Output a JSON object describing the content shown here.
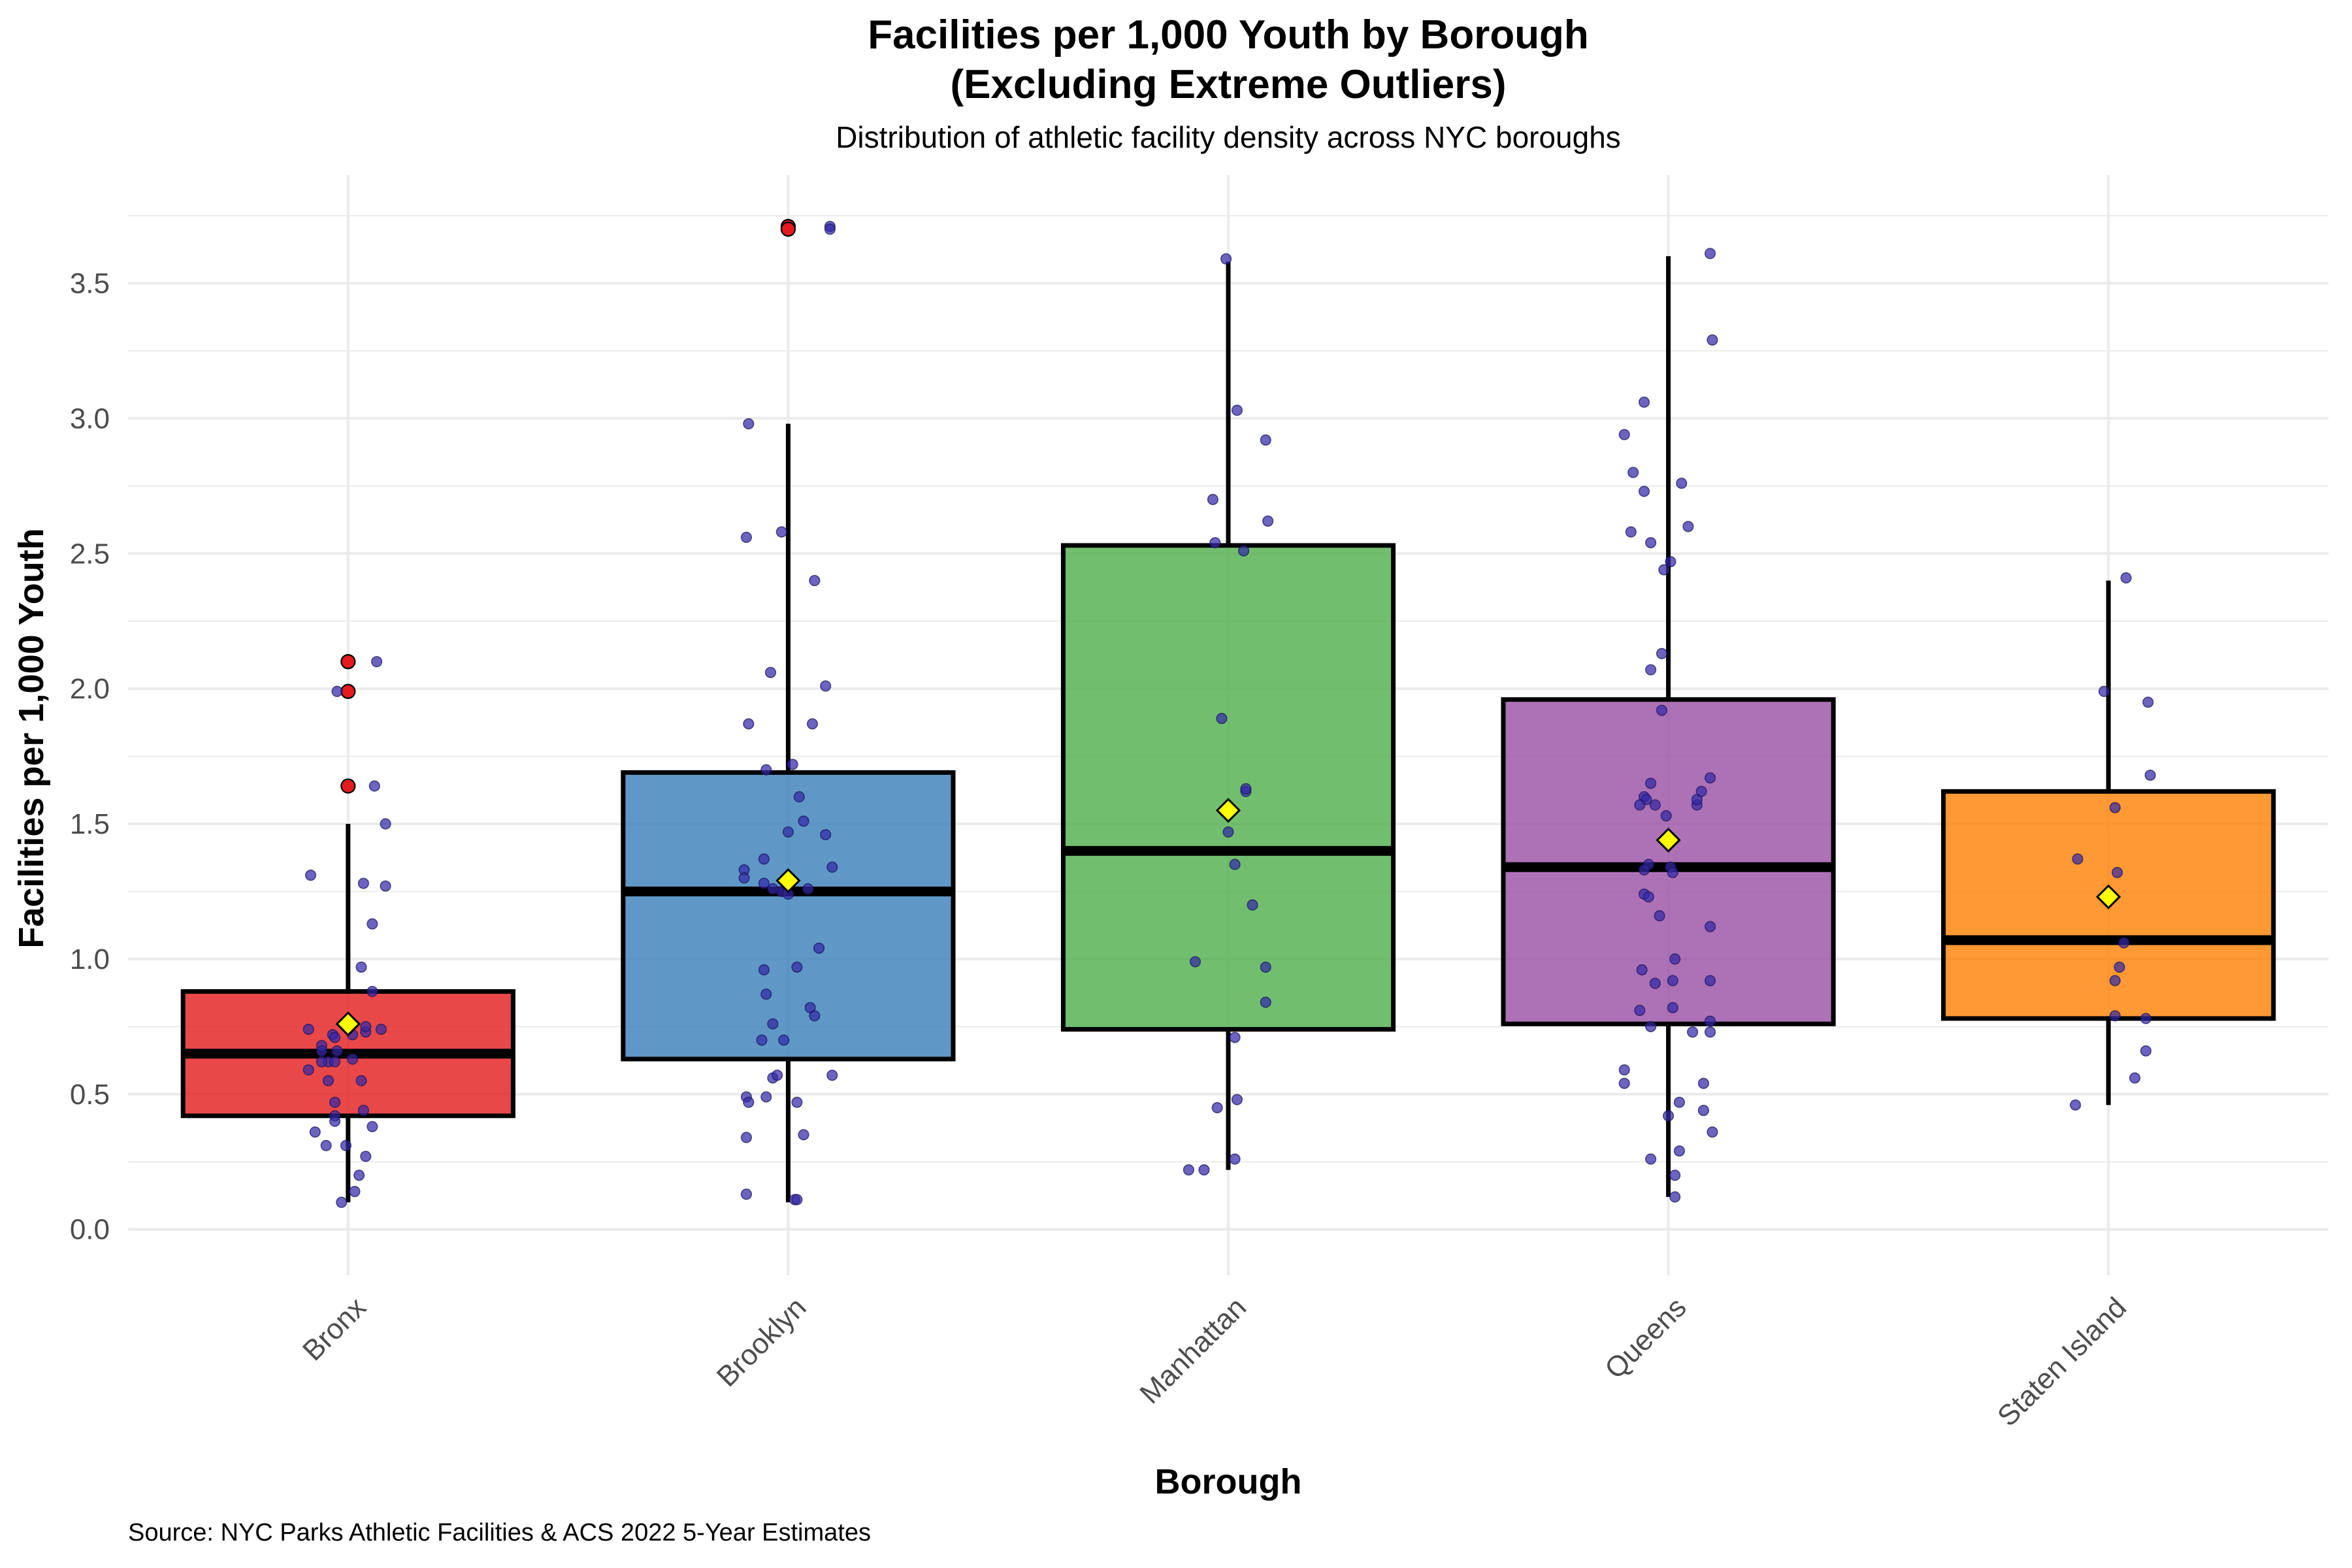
{
  "chart_data": {
    "type": "box",
    "title_line1": "Facilities per 1,000 Youth by Borough",
    "title_line2": "(Excluding Extreme Outliers)",
    "subtitle": "Distribution of athletic facility density across NYC boroughs",
    "xlabel": "Borough",
    "ylabel": "Facilities per 1,000 Youth",
    "caption": "Source: NYC Parks Athletic Facilities & ACS 2022 5-Year Estimates",
    "ylim": [
      -0.17,
      3.9
    ],
    "yticks": [
      0.0,
      0.5,
      1.0,
      1.5,
      2.0,
      2.5,
      3.0,
      3.5
    ],
    "ytick_labels": [
      "0.0",
      "0.5",
      "1.0",
      "1.5",
      "2.0",
      "2.5",
      "3.0",
      "3.5"
    ],
    "grid": true,
    "legend": "none",
    "colors": {
      "point": "#3328A8",
      "mean_marker": "#FFFF00",
      "outlier": "#E41A1C",
      "whisker": "#000000",
      "grid": "#EBEBEB"
    },
    "categories": [
      "Bronx",
      "Brooklyn",
      "Manhattan",
      "Queens",
      "Staten Island"
    ],
    "boxes": [
      {
        "name": "Bronx",
        "color": "#E41A1C",
        "whisker_low": 0.1,
        "q1": 0.42,
        "median": 0.65,
        "q3": 0.88,
        "whisker_high": 1.5,
        "mean": 0.76,
        "outliers": [
          2.1,
          1.99,
          1.64
        ],
        "points": [
          [
            -0.17,
            1.31
          ],
          [
            0.13,
            2.1
          ],
          [
            -0.05,
            1.99
          ],
          [
            0.12,
            1.64
          ],
          [
            0.17,
            1.5
          ],
          [
            0.11,
            1.13
          ],
          [
            0.07,
            1.28
          ],
          [
            0.17,
            1.27
          ],
          [
            0.06,
            0.97
          ],
          [
            0.11,
            0.88
          ],
          [
            -0.18,
            0.74
          ],
          [
            0.15,
            0.74
          ],
          [
            0.08,
            0.73
          ],
          [
            -0.07,
            0.72
          ],
          [
            -0.06,
            0.71
          ],
          [
            0.02,
            0.72
          ],
          [
            -0.12,
            0.68
          ],
          [
            -0.12,
            0.66
          ],
          [
            -0.05,
            0.66
          ],
          [
            -0.09,
            0.62
          ],
          [
            -0.12,
            0.62
          ],
          [
            -0.06,
            0.62
          ],
          [
            0.02,
            0.63
          ],
          [
            0.08,
            0.75
          ],
          [
            -0.18,
            0.59
          ],
          [
            -0.09,
            0.55
          ],
          [
            0.06,
            0.55
          ],
          [
            -0.06,
            0.47
          ],
          [
            -0.06,
            0.42
          ],
          [
            -0.06,
            0.4
          ],
          [
            0.07,
            0.44
          ],
          [
            0.11,
            0.38
          ],
          [
            -0.15,
            0.36
          ],
          [
            -0.1,
            0.31
          ],
          [
            -0.01,
            0.31
          ],
          [
            0.08,
            0.27
          ],
          [
            0.05,
            0.2
          ],
          [
            0.03,
            0.14
          ],
          [
            -0.03,
            0.1
          ]
        ]
      },
      {
        "name": "Brooklyn",
        "color": "#377EB8",
        "whisker_low": 0.1,
        "q1": 0.63,
        "median": 1.25,
        "q3": 1.69,
        "whisker_high": 2.98,
        "mean": 1.29,
        "outliers": [
          3.71,
          3.7
        ],
        "points": [
          [
            0.19,
            3.71
          ],
          [
            0.19,
            3.7
          ],
          [
            -0.18,
            2.98
          ],
          [
            -0.19,
            2.56
          ],
          [
            -0.03,
            2.58
          ],
          [
            0.12,
            2.4
          ],
          [
            -0.08,
            2.06
          ],
          [
            -0.18,
            1.87
          ],
          [
            0.17,
            2.01
          ],
          [
            0.11,
            1.87
          ],
          [
            -0.1,
            1.7
          ],
          [
            0.02,
            1.72
          ],
          [
            0.05,
            1.6
          ],
          [
            0.07,
            1.51
          ],
          [
            -0.2,
            1.33
          ],
          [
            -0.2,
            1.3
          ],
          [
            -0.11,
            1.37
          ],
          [
            0.0,
            1.47
          ],
          [
            0.17,
            1.46
          ],
          [
            0.2,
            1.34
          ],
          [
            -0.03,
            1.25
          ],
          [
            -0.07,
            1.26
          ],
          [
            -0.11,
            1.28
          ],
          [
            0.0,
            1.24
          ],
          [
            0.09,
            1.26
          ],
          [
            -0.11,
            0.96
          ],
          [
            0.04,
            0.97
          ],
          [
            0.14,
            1.04
          ],
          [
            -0.1,
            0.87
          ],
          [
            0.1,
            0.82
          ],
          [
            0.12,
            0.79
          ],
          [
            -0.07,
            0.76
          ],
          [
            -0.12,
            0.7
          ],
          [
            -0.02,
            0.7
          ],
          [
            -0.07,
            0.56
          ],
          [
            -0.05,
            0.57
          ],
          [
            0.2,
            0.57
          ],
          [
            -0.19,
            0.49
          ],
          [
            -0.18,
            0.47
          ],
          [
            -0.1,
            0.49
          ],
          [
            0.04,
            0.47
          ],
          [
            -0.19,
            0.34
          ],
          [
            0.07,
            0.35
          ],
          [
            -0.19,
            0.13
          ],
          [
            0.03,
            0.11
          ],
          [
            0.04,
            0.11
          ]
        ]
      },
      {
        "name": "Manhattan",
        "color": "#4DAF4A",
        "whisker_low": 0.22,
        "q1": 0.74,
        "median": 1.4,
        "q3": 2.53,
        "whisker_high": 3.58,
        "mean": 1.55,
        "outliers": [],
        "points": [
          [
            -0.01,
            3.59
          ],
          [
            0.04,
            3.03
          ],
          [
            0.17,
            2.92
          ],
          [
            -0.07,
            2.7
          ],
          [
            -0.06,
            2.54
          ],
          [
            0.18,
            2.62
          ],
          [
            0.07,
            2.51
          ],
          [
            -0.03,
            1.89
          ],
          [
            0.0,
            1.47
          ],
          [
            0.08,
            1.62
          ],
          [
            0.08,
            1.63
          ],
          [
            0.03,
            1.35
          ],
          [
            0.11,
            1.2
          ],
          [
            -0.15,
            0.99
          ],
          [
            0.17,
            0.97
          ],
          [
            0.17,
            0.84
          ],
          [
            0.03,
            0.71
          ],
          [
            -0.05,
            0.45
          ],
          [
            0.04,
            0.48
          ],
          [
            -0.18,
            0.22
          ],
          [
            -0.11,
            0.22
          ],
          [
            0.03,
            0.26
          ]
        ]
      },
      {
        "name": "Queens",
        "color": "#984EA3",
        "whisker_low": 0.12,
        "q1": 0.76,
        "median": 1.34,
        "q3": 1.96,
        "whisker_high": 3.6,
        "mean": 1.44,
        "outliers": [],
        "points": [
          [
            0.19,
            3.61
          ],
          [
            0.2,
            3.29
          ],
          [
            -0.11,
            3.06
          ],
          [
            -0.2,
            2.94
          ],
          [
            -0.16,
            2.8
          ],
          [
            0.06,
            2.76
          ],
          [
            -0.11,
            2.73
          ],
          [
            -0.17,
            2.58
          ],
          [
            0.09,
            2.6
          ],
          [
            -0.08,
            2.54
          ],
          [
            -0.02,
            2.44
          ],
          [
            0.01,
            2.47
          ],
          [
            -0.03,
            2.13
          ],
          [
            -0.08,
            2.07
          ],
          [
            -0.03,
            1.92
          ],
          [
            -0.08,
            1.65
          ],
          [
            -0.11,
            1.6
          ],
          [
            -0.1,
            1.59
          ],
          [
            -0.13,
            1.57
          ],
          [
            -0.06,
            1.57
          ],
          [
            0.13,
            1.57
          ],
          [
            0.13,
            1.59
          ],
          [
            0.19,
            1.67
          ],
          [
            0.15,
            1.62
          ],
          [
            -0.01,
            1.53
          ],
          [
            -0.09,
            1.35
          ],
          [
            -0.11,
            1.33
          ],
          [
            0.01,
            1.34
          ],
          [
            0.02,
            1.32
          ],
          [
            -0.11,
            1.24
          ],
          [
            -0.09,
            1.23
          ],
          [
            -0.04,
            1.16
          ],
          [
            0.19,
            1.12
          ],
          [
            0.03,
            1.0
          ],
          [
            -0.12,
            0.96
          ],
          [
            -0.06,
            0.91
          ],
          [
            0.02,
            0.92
          ],
          [
            0.19,
            0.92
          ],
          [
            -0.13,
            0.81
          ],
          [
            0.02,
            0.82
          ],
          [
            -0.08,
            0.75
          ],
          [
            0.19,
            0.77
          ],
          [
            0.11,
            0.73
          ],
          [
            0.19,
            0.73
          ],
          [
            -0.2,
            0.59
          ],
          [
            -0.2,
            0.54
          ],
          [
            0.16,
            0.54
          ],
          [
            0.05,
            0.47
          ],
          [
            0.16,
            0.44
          ],
          [
            0.0,
            0.42
          ],
          [
            0.2,
            0.36
          ],
          [
            0.05,
            0.29
          ],
          [
            -0.08,
            0.26
          ],
          [
            0.03,
            0.2
          ],
          [
            0.03,
            0.12
          ]
        ]
      },
      {
        "name": "Staten Island",
        "color": "#FF7F00",
        "whisker_low": 0.46,
        "q1": 0.78,
        "median": 1.07,
        "q3": 1.62,
        "whisker_high": 2.4,
        "mean": 1.23,
        "outliers": [],
        "points": [
          [
            0.08,
            2.41
          ],
          [
            -0.02,
            1.99
          ],
          [
            0.18,
            1.95
          ],
          [
            0.19,
            1.68
          ],
          [
            0.03,
            1.56
          ],
          [
            -0.14,
            1.37
          ],
          [
            0.04,
            1.32
          ],
          [
            0.07,
            1.06
          ],
          [
            0.05,
            0.97
          ],
          [
            0.03,
            0.92
          ],
          [
            0.03,
            0.79
          ],
          [
            0.17,
            0.78
          ],
          [
            0.17,
            0.66
          ],
          [
            0.12,
            0.56
          ],
          [
            -0.15,
            0.46
          ]
        ]
      }
    ]
  }
}
